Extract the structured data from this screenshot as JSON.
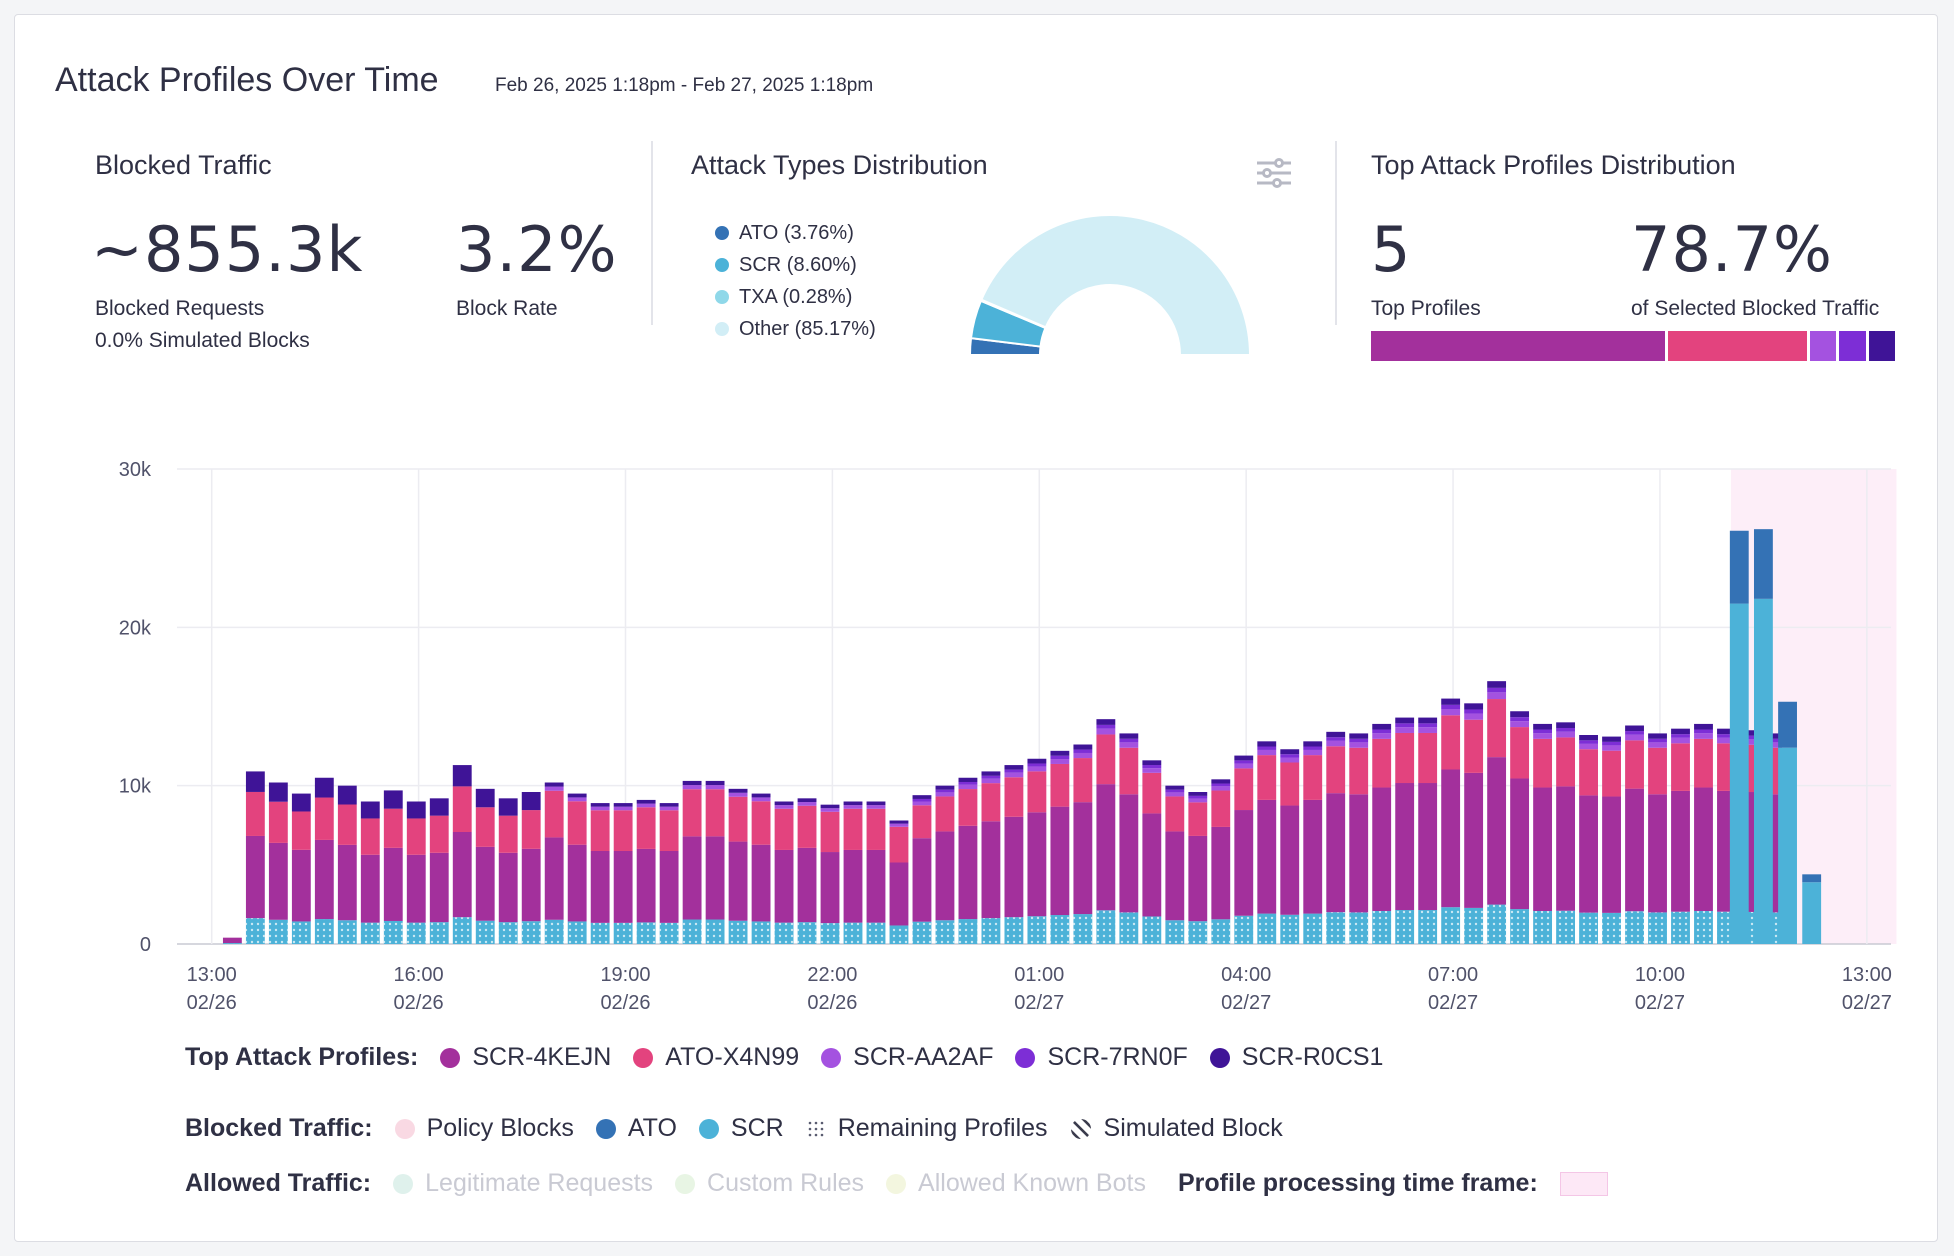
{
  "header": {
    "title": "Attack Profiles Over Time",
    "range": "Feb 26, 2025 1:18pm - Feb 27, 2025 1:18pm"
  },
  "blocked_traffic": {
    "title": "Blocked Traffic",
    "requests_value": "~855.3k",
    "requests_label": "Blocked Requests",
    "simulated": "0.0% Simulated Blocks",
    "rate_value": "3.2%",
    "rate_label": "Block Rate"
  },
  "attack_types": {
    "title": "Attack Types Distribution",
    "items": [
      {
        "label": "ATO (3.76%)",
        "value": 3.76,
        "color": "#3472b5"
      },
      {
        "label": "SCR (8.60%)",
        "value": 8.6,
        "color": "#4cb2d8"
      },
      {
        "label": "TXA (0.28%)",
        "value": 0.28,
        "color": "#8fd8e9"
      },
      {
        "label": "Other (85.17%)",
        "value": 85.17,
        "color": "#d2eef6"
      }
    ]
  },
  "top_profiles": {
    "title": "Top Attack Profiles Distribution",
    "count_value": "5",
    "count_label": "Top Profiles",
    "pct_value": "78.7%",
    "pct_label": "of Selected Blocked Traffic",
    "bar_segments": [
      {
        "name": "SCR-4KEJN",
        "share": 0.56,
        "color": "#a3309c"
      },
      {
        "name": "ATO-X4N99",
        "share": 0.265,
        "color": "#e3437e"
      },
      {
        "name": "SCR-AA2AF",
        "share": 0.05,
        "color": "#a452e0"
      },
      {
        "name": "SCR-7RN0F",
        "share": 0.05,
        "color": "#7d2ed6"
      },
      {
        "name": "SCR-R0CS1",
        "share": 0.05,
        "color": "#3f1497"
      }
    ]
  },
  "legend": {
    "top_profiles_label": "Top Attack Profiles:",
    "top_profiles": [
      {
        "label": "SCR-4KEJN",
        "color": "#a3309c"
      },
      {
        "label": "ATO-X4N99",
        "color": "#e3437e"
      },
      {
        "label": "SCR-AA2AF",
        "color": "#a452e0"
      },
      {
        "label": "SCR-7RN0F",
        "color": "#7d2ed6"
      },
      {
        "label": "SCR-R0CS1",
        "color": "#3f1497"
      }
    ],
    "blocked_label": "Blocked Traffic:",
    "blocked": [
      {
        "label": "Policy Blocks",
        "color": "#f9d9e3"
      },
      {
        "label": "ATO",
        "color": "#3472b5"
      },
      {
        "label": "SCR",
        "color": "#4cb2d8"
      },
      {
        "label": "Remaining Profiles",
        "color": "dots"
      },
      {
        "label": "Simulated Block",
        "color": "hatch"
      }
    ],
    "allowed_label": "Allowed Traffic:",
    "allowed": [
      {
        "label": "Legitimate Requests",
        "color": "#dff1ec"
      },
      {
        "label": "Custom Rules",
        "color": "#e8f5e4"
      },
      {
        "label": "Allowed Known Bots",
        "color": "#f3f6df"
      }
    ],
    "processing_label": "Profile processing time frame:",
    "processing_color": "#fde8f6"
  },
  "chart_data": {
    "type": "bar",
    "stacked": true,
    "ylim": [
      0,
      30000
    ],
    "y_ticks": [
      {
        "value": 0,
        "label": "0"
      },
      {
        "value": 10000,
        "label": "10k"
      },
      {
        "value": 20000,
        "label": "20k"
      },
      {
        "value": 30000,
        "label": "30k"
      }
    ],
    "x_ticks": [
      {
        "hour": 13,
        "label": "13:00",
        "date": "02/26"
      },
      {
        "hour": 16,
        "label": "16:00",
        "date": "02/26"
      },
      {
        "hour": 19,
        "label": "19:00",
        "date": "02/26"
      },
      {
        "hour": 22,
        "label": "22:00",
        "date": "02/26"
      },
      {
        "hour": 25,
        "label": "01:00",
        "date": "02/27"
      },
      {
        "hour": 28,
        "label": "04:00",
        "date": "02/27"
      },
      {
        "hour": 31,
        "label": "07:00",
        "date": "02/27"
      },
      {
        "hour": 34,
        "label": "10:00",
        "date": "02/27"
      },
      {
        "hour": 37,
        "label": "13:00",
        "date": "02/27"
      }
    ],
    "profile_processing_window": [
      35.0,
      37.4
    ],
    "series_colors": {
      "base": "#4cb2d8",
      "SCR-4KEJN": "#a3309c",
      "ATO-X4N99": "#e3437e",
      "SCR-AA2AF": "#a452e0",
      "SCR-7RN0F": "#7d2ed6",
      "SCR-R0CS1": "#3f1497",
      "ATO": "#3472b5",
      "SCR": "#4cb2d8"
    },
    "profile_bars": {
      "start_hour": 13.3,
      "step_hours": 0.3333,
      "series_order": [
        "base",
        "SCR-4KEJN",
        "ATO-X4N99",
        "SCR-AA2AF",
        "SCR-7RN0F",
        "SCR-R0CS1"
      ],
      "totals": [
        400,
        10900,
        10200,
        9500,
        10500,
        10000,
        9000,
        9700,
        9000,
        9200,
        11300,
        9800,
        9200,
        9600,
        10200,
        9500,
        8900,
        8900,
        9100,
        8900,
        10300,
        10300,
        9800,
        9500,
        9000,
        9200,
        8800,
        9000,
        9000,
        7800,
        9400,
        10000,
        10500,
        10900,
        11300,
        11700,
        12200,
        12600,
        14200,
        13300,
        11600,
        10000,
        9600,
        10400,
        11900,
        12800,
        12300,
        12800,
        13400,
        13300,
        13900,
        14300,
        14300,
        15500,
        15200,
        16600,
        14700,
        13900,
        14000,
        13200,
        13100,
        13800,
        13300,
        13600,
        13900,
        13600,
        13500,
        13300
      ],
      "top_profile_share": [
        0.06,
        0.28,
        0.36,
        0.16,
        0.04,
        0.06
      ],
      "base_fraction": 0.15
    },
    "scr_bars": [
      {
        "hour": 35.15,
        "SCR": 21500,
        "ATO": 4600
      },
      {
        "hour": 35.5,
        "SCR": 21800,
        "ATO": 4400
      },
      {
        "hour": 35.85,
        "SCR": 12400,
        "ATO": 2900
      },
      {
        "hour": 36.2,
        "SCR": 3900,
        "ATO": 500
      }
    ]
  }
}
